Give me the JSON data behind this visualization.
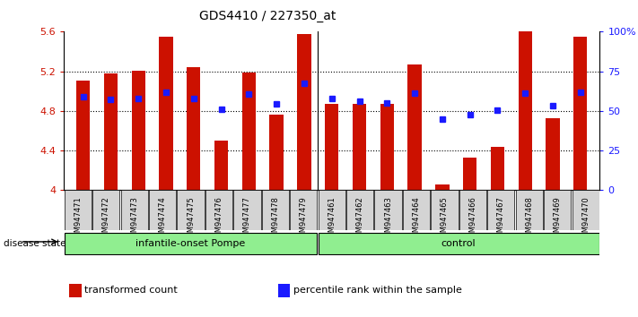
{
  "title": "GDS4410 / 227350_at",
  "samples": [
    "GSM947471",
    "GSM947472",
    "GSM947473",
    "GSM947474",
    "GSM947475",
    "GSM947476",
    "GSM947477",
    "GSM947478",
    "GSM947479",
    "GSM947461",
    "GSM947462",
    "GSM947463",
    "GSM947464",
    "GSM947465",
    "GSM947466",
    "GSM947467",
    "GSM947468",
    "GSM947469",
    "GSM947470"
  ],
  "bar_values": [
    5.11,
    5.18,
    5.21,
    5.55,
    5.24,
    4.5,
    5.19,
    4.76,
    5.58,
    4.87,
    4.87,
    4.87,
    5.27,
    4.06,
    4.33,
    4.44,
    5.64,
    4.73,
    5.55
  ],
  "percentile_values": [
    4.94,
    4.92,
    4.93,
    4.99,
    4.93,
    4.82,
    4.97,
    4.87,
    5.08,
    4.93,
    4.9,
    4.88,
    4.98,
    4.72,
    4.76,
    4.81,
    4.98,
    4.85,
    4.99
  ],
  "groups": [
    {
      "label": "infantile-onset Pompe",
      "start": 0,
      "end": 9,
      "color": "#90ee90"
    },
    {
      "label": "control",
      "start": 9,
      "end": 19,
      "color": "#90ee90"
    }
  ],
  "group_separator": 9,
  "ylim": [
    4.0,
    5.6
  ],
  "yticks": [
    4.0,
    4.4,
    4.8,
    5.2,
    5.6
  ],
  "ytick_labels": [
    "4",
    "4.4",
    "4.8",
    "5.2",
    "5.6"
  ],
  "right_yticks": [
    0,
    25,
    50,
    75,
    100
  ],
  "right_ytick_labels": [
    "0",
    "25",
    "50",
    "75",
    "100%"
  ],
  "bar_color": "#cc1100",
  "dot_color": "#1a1aff",
  "bar_width": 0.5,
  "ylabel_color": "#cc1100",
  "right_ylabel_color": "#1a1aff",
  "title_color": "#000000",
  "legend_items": [
    {
      "label": "transformed count",
      "color": "#cc1100"
    },
    {
      "label": "percentile rank within the sample",
      "color": "#1a1aff"
    }
  ],
  "disease_state_label": "disease state"
}
